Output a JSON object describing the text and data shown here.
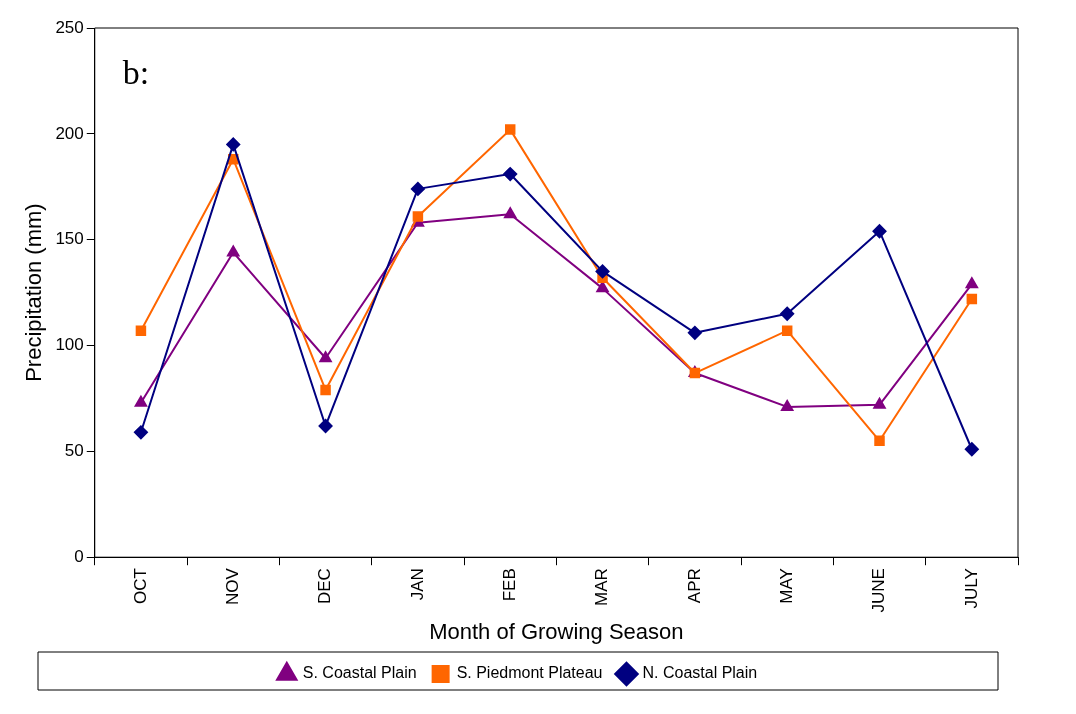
{
  "chart_data": {
    "type": "line",
    "xlabel": "Month of Growing Season",
    "ylabel": "Precipitation (mm)",
    "annotations": [
      "b:"
    ],
    "categories": [
      "OCT",
      "NOV",
      "DEC",
      "JAN",
      "FEB",
      "MAR",
      "APR",
      "MAY",
      "JUNE",
      "JULY"
    ],
    "series": [
      {
        "name": "S. Coastal Plain",
        "color": "#800080",
        "marker": "triangle",
        "values": [
          73,
          144,
          94,
          158,
          162,
          127,
          87,
          71,
          72,
          129
        ]
      },
      {
        "name": "S. Piedmont Plateau",
        "color": "#ff6600",
        "marker": "square",
        "values": [
          107,
          188,
          79,
          161,
          202,
          132,
          87,
          107,
          55,
          122
        ]
      },
      {
        "name": "N. Coastal Plain",
        "color": "#000080",
        "marker": "diamond",
        "values": [
          59,
          195,
          62,
          174,
          181,
          135,
          106,
          115,
          154,
          51
        ]
      }
    ],
    "ylim": [
      0,
      250
    ],
    "yticks": [
      0,
      50,
      100,
      150,
      200,
      250
    ],
    "grid": false,
    "legend": "bottom",
    "line_style": "solid"
  }
}
